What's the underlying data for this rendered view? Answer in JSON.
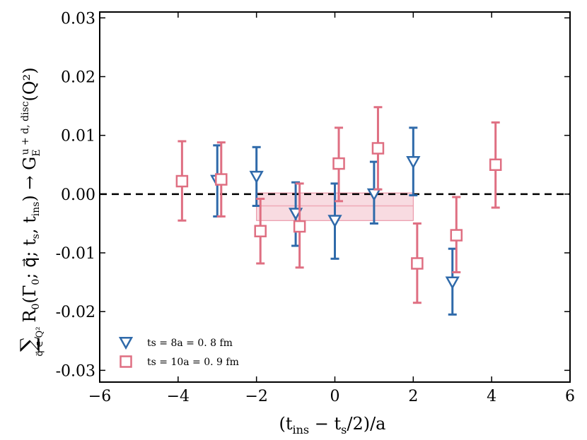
{
  "chart_data": {
    "type": "scatter",
    "title": "",
    "xlabel": "(t_ins − t_s/2)/a",
    "ylabel": "Σ_{q⃗ ∈ Q²} R0(Γ0; q⃗; t_s, t_ins) → G_E^{u+d, disc}(Q²)",
    "xlim": [
      -6,
      6
    ],
    "ylim": [
      -0.032,
      0.031
    ],
    "xticks": [
      -6,
      -4,
      -2,
      0,
      2,
      4,
      6
    ],
    "xtick_labels": [
      "−6",
      "−4",
      "−2",
      "0",
      "2",
      "4",
      "6"
    ],
    "yticks": [
      0.03,
      0.02,
      0.01,
      0.0,
      -0.01,
      -0.02,
      -0.03
    ],
    "ytick_labels": [
      "0.03",
      "0.02",
      "0.01",
      "0.00",
      "-0.01",
      "-0.02",
      "-0.03"
    ],
    "reference_line_y": 0.0,
    "legend_position": "lower-left",
    "band": {
      "x_range": [
        -2,
        2
      ],
      "center": -0.002,
      "lower": -0.0045,
      "upper": 0.0002,
      "color": "#e8899b"
    },
    "series": [
      {
        "name": "t_s = 8a = 0.8 fm",
        "legend_label": "ts = 8a = 0. 8 fm",
        "marker": "triangle-down",
        "color": "#2f6aaa",
        "points": [
          {
            "x": -3,
            "y": 0.0023,
            "lo": -0.0038,
            "hi": 0.0083
          },
          {
            "x": -2,
            "y": 0.003,
            "lo": -0.002,
            "hi": 0.008
          },
          {
            "x": -1,
            "y": -0.0033,
            "lo": -0.0088,
            "hi": 0.002
          },
          {
            "x": 0,
            "y": -0.0045,
            "lo": -0.011,
            "hi": 0.0018
          },
          {
            "x": 1,
            "y": 0.0,
            "lo": -0.005,
            "hi": 0.0055
          },
          {
            "x": 2,
            "y": 0.0055,
            "lo": -0.0002,
            "hi": 0.0113
          },
          {
            "x": 3,
            "y": -0.015,
            "lo": -0.0205,
            "hi": -0.0093
          }
        ]
      },
      {
        "name": "t_s = 10a = 0.9 fm",
        "legend_label": "ts = 10a = 0. 9 fm",
        "marker": "square",
        "color": "#df6f82",
        "points": [
          {
            "x": -3.9,
            "y": 0.0022,
            "lo": -0.0045,
            "hi": 0.009
          },
          {
            "x": -2.9,
            "y": 0.0025,
            "lo": -0.0038,
            "hi": 0.0088
          },
          {
            "x": -1.9,
            "y": -0.0063,
            "lo": -0.0118,
            "hi": -0.0008
          },
          {
            "x": -0.9,
            "y": -0.0055,
            "lo": -0.0125,
            "hi": 0.0018
          },
          {
            "x": 0.1,
            "y": 0.0052,
            "lo": -0.0012,
            "hi": 0.0113
          },
          {
            "x": 1.1,
            "y": 0.0078,
            "lo": 0.0008,
            "hi": 0.0148
          },
          {
            "x": 2.1,
            "y": -0.0118,
            "lo": -0.0185,
            "hi": -0.005
          },
          {
            "x": 3.1,
            "y": -0.007,
            "lo": -0.0133,
            "hi": -0.0005
          },
          {
            "x": 4.1,
            "y": 0.005,
            "lo": -0.0023,
            "hi": 0.0122
          }
        ]
      }
    ]
  }
}
